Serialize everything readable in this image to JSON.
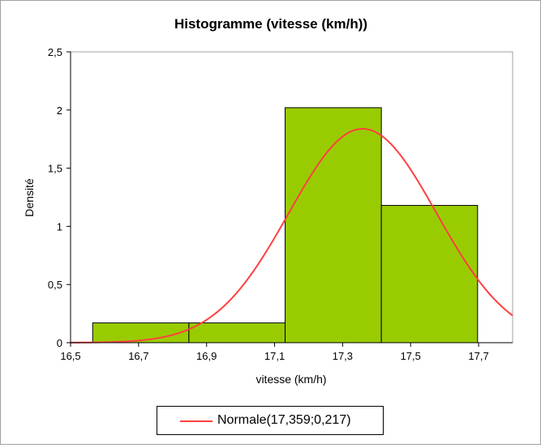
{
  "chart_data": {
    "type": "bar",
    "title": "Histogramme  (vitesse (km/h))",
    "xlabel": "vitesse  (km/h)",
    "ylabel": "Densité",
    "xlim": [
      16.5,
      17.8
    ],
    "ylim": [
      0,
      2.5
    ],
    "x_ticks": [
      "16,5",
      "16,7",
      "16,9",
      "17,1",
      "17,3",
      "17,5",
      "17,7"
    ],
    "y_ticks": [
      "0",
      "0,5",
      "1",
      "1,5",
      "2",
      "2,5"
    ],
    "bins": [
      {
        "from": 16.565,
        "to": 16.848,
        "density": 0.17
      },
      {
        "from": 16.848,
        "to": 17.131,
        "density": 0.17
      },
      {
        "from": 17.131,
        "to": 17.414,
        "density": 2.02
      },
      {
        "from": 17.414,
        "to": 17.697,
        "density": 1.18
      }
    ],
    "curve": {
      "name": "Normale(17,359;0,217)",
      "mean": 17.359,
      "sd": 0.217
    },
    "grid": false,
    "legend_position": "bottom",
    "colors": {
      "bar_fill": "#99cc00",
      "bar_stroke": "#000000",
      "curve": "#ff4040",
      "plot_border": "#a0a0a0"
    }
  }
}
